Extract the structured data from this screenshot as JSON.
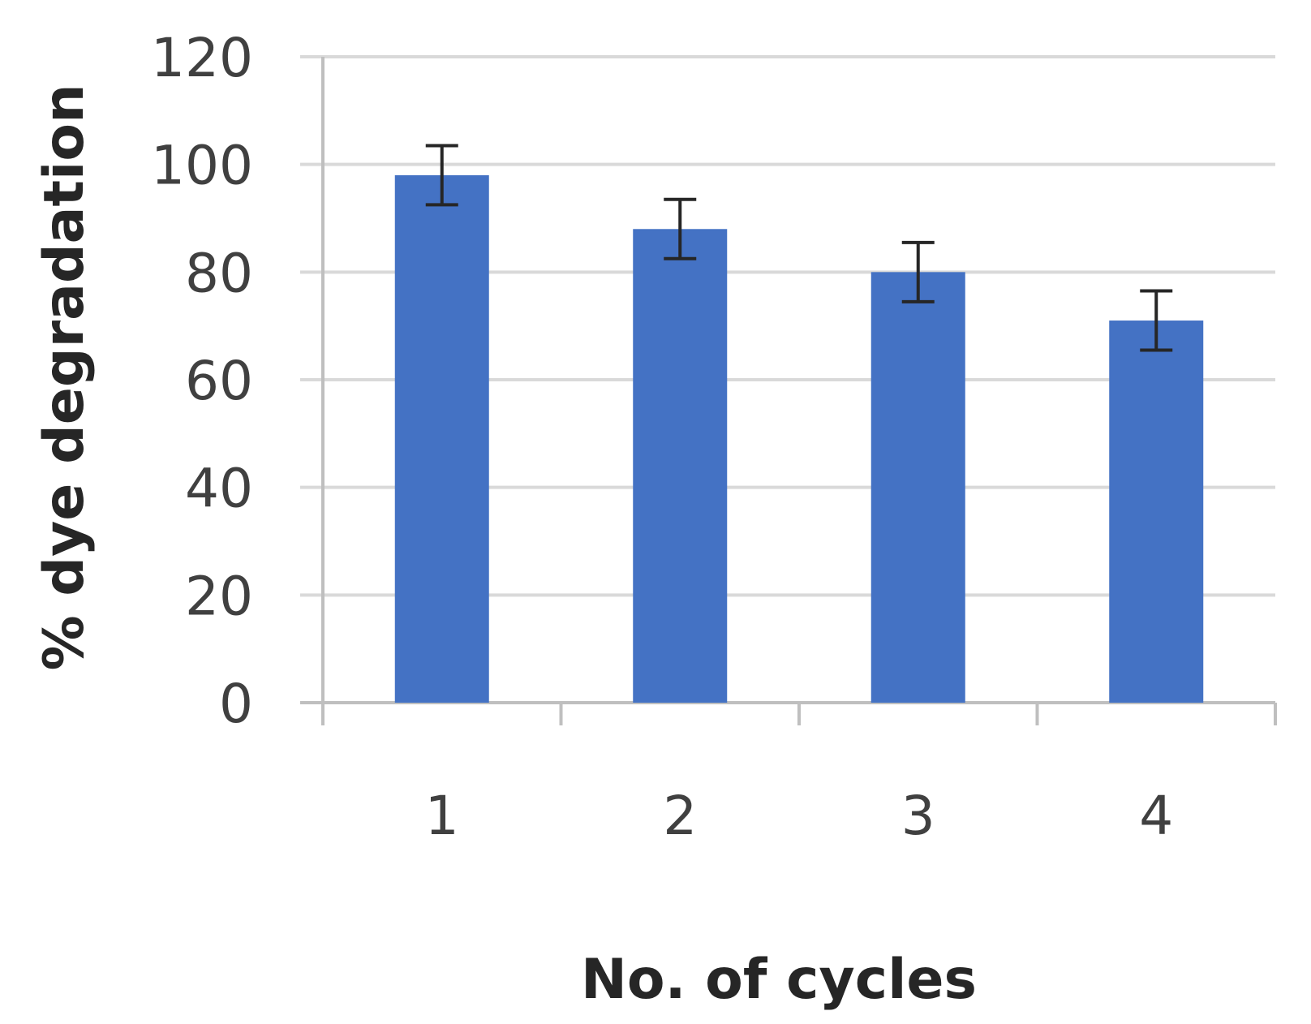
{
  "chart_data": {
    "type": "bar",
    "title": "",
    "xlabel": "No. of cycles",
    "ylabel": "% dye degradation",
    "categories": [
      "1",
      "2",
      "3",
      "4"
    ],
    "series": [
      {
        "values": [
          98,
          88,
          80,
          71
        ],
        "error": [
          5.5,
          5.5,
          5.5,
          5.5
        ]
      }
    ],
    "ylim": [
      0,
      120
    ],
    "yticks": [
      0,
      20,
      40,
      60,
      80,
      100,
      120
    ],
    "grid": true,
    "legend": "none",
    "colors": {
      "bar": "#4472C4",
      "grid": "#D9D9D9",
      "axis": "#BFBFBF",
      "error": "#262626"
    }
  }
}
